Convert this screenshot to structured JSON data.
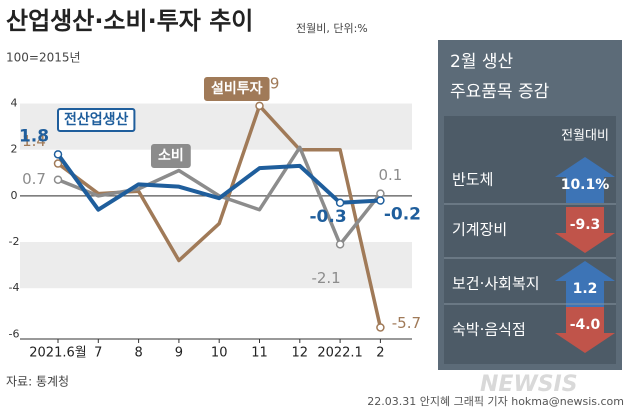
{
  "chart_data": [
    {
      "type": "line",
      "title": "산업생산·소비·투자 추이",
      "subtitle": "전월비, 단위:%",
      "note": "100=2015년",
      "categories": [
        "2021.6월",
        "7",
        "8",
        "9",
        "10",
        "11",
        "12",
        "2022.1",
        "2"
      ],
      "series": [
        {
          "name": "전산업생산",
          "color": "#1f5e9c",
          "values": [
            1.8,
            -0.6,
            0.5,
            0.4,
            -0.1,
            1.2,
            1.3,
            -0.3,
            -0.2
          ],
          "labeled": [
            0,
            7,
            8
          ]
        },
        {
          "name": "소비",
          "color": "#8c8c8c",
          "values": [
            0.7,
            0,
            0.3,
            1.1,
            0,
            -0.6,
            2.1,
            -2.1,
            0.1
          ],
          "labeled": [
            0,
            7,
            8
          ]
        },
        {
          "name": "설비투자",
          "color": "#a07a58",
          "values": [
            1.4,
            0.1,
            0.2,
            -2.8,
            -1.2,
            3.9,
            2.0,
            2.0,
            -5.7
          ],
          "labeled": [
            0,
            5,
            8
          ]
        }
      ],
      "ylim": [
        -6.2,
        4.5
      ],
      "yticks": [
        4,
        2,
        0,
        -2,
        -4,
        -6
      ],
      "bands": [
        [
          2,
          4
        ],
        [
          -4,
          -2
        ]
      ],
      "zero_line": true,
      "source": "자료: 통계청"
    },
    {
      "type": "arrows",
      "title": [
        "2월 생산",
        "주요품목 증감"
      ],
      "column": "전월대비",
      "categories": [
        "반도체",
        "기계장비",
        "보건·사회복지",
        "숙박·음식점"
      ],
      "values": [
        10.1,
        -9.3,
        1.2,
        -4.0
      ],
      "value_labels": [
        "10.1%",
        "-9.3",
        "1.2",
        "-4.0"
      ],
      "up_color": "#3d74b6",
      "down_color": "#c0544a"
    }
  ],
  "credit": "22.03.31 안지혜 그래픽 기자 hokma@newsis.com",
  "watermark": "NEWSIS"
}
